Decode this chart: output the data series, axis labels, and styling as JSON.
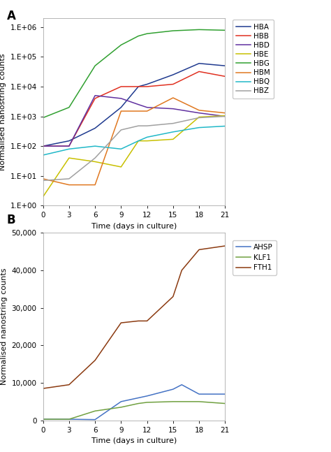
{
  "panel_A": {
    "x": [
      0,
      3,
      6,
      9,
      11,
      12,
      15,
      18,
      21
    ],
    "series": {
      "HBA": {
        "color": "#1f3a8f",
        "values": [
          100,
          150,
          400,
          2000,
          10000,
          12000,
          25000,
          60000,
          50000
        ]
      },
      "HBB": {
        "color": "#e03020",
        "values": [
          100,
          100,
          4000,
          10000,
          10000,
          10000,
          12000,
          32000,
          22000
        ]
      },
      "HBD": {
        "color": "#6030a0",
        "values": [
          100,
          100,
          5000,
          4000,
          2500,
          2000,
          1800,
          1300,
          1000
        ]
      },
      "HBE": {
        "color": "#c8c000",
        "values": [
          2,
          40,
          30,
          20,
          150,
          150,
          170,
          950,
          1050
        ]
      },
      "HBG": {
        "color": "#30a030",
        "values": [
          900,
          2000,
          50000,
          250000,
          500000,
          600000,
          750000,
          820000,
          780000
        ]
      },
      "HBM": {
        "color": "#e07820",
        "values": [
          8,
          5,
          5,
          1500,
          1500,
          1500,
          4200,
          1600,
          1300
        ]
      },
      "HBQ": {
        "color": "#20b8c8",
        "values": [
          50,
          80,
          100,
          80,
          150,
          200,
          300,
          420,
          470
        ]
      },
      "HBZ": {
        "color": "#a0a0a0",
        "values": [
          7,
          8,
          40,
          350,
          480,
          480,
          580,
          900,
          1000
        ]
      }
    },
    "ylabel": "Normalised nanostring counts",
    "xlabel": "Time (days in culture)",
    "ylim": [
      1,
      2000000
    ],
    "xlim": [
      0,
      21
    ],
    "xticks": [
      0,
      3,
      6,
      9,
      12,
      15,
      18,
      21
    ],
    "ytick_vals": [
      1,
      10,
      100,
      1000,
      10000,
      100000,
      1000000
    ],
    "ytick_labels": [
      "1.E+00",
      "1.E+01",
      "1.E+02",
      "1.E+03",
      "1.E+04",
      "1.E+05",
      "1.E+06"
    ]
  },
  "panel_B": {
    "x": [
      0,
      3,
      6,
      9,
      11,
      12,
      15,
      16,
      18,
      21
    ],
    "series": {
      "AHSP": {
        "color": "#4472c4",
        "values": [
          300,
          300,
          200,
          5000,
          6000,
          6500,
          8300,
          9500,
          7000,
          7000
        ]
      },
      "KLF1": {
        "color": "#70a040",
        "values": [
          300,
          300,
          2500,
          3500,
          4500,
          4800,
          5000,
          5000,
          5000,
          4500
        ]
      },
      "FTH1": {
        "color": "#8b3a10",
        "values": [
          8500,
          9500,
          16000,
          26000,
          26500,
          26500,
          33000,
          40000,
          45500,
          46500
        ]
      }
    },
    "ylabel": "Normalised nanostring counts",
    "xlabel": "Time (days in culture)",
    "ylim": [
      0,
      50000
    ],
    "xlim": [
      0,
      21
    ],
    "xticks": [
      0,
      3,
      6,
      9,
      12,
      15,
      18,
      21
    ],
    "yticks": [
      0,
      10000,
      20000,
      30000,
      40000,
      50000
    ],
    "ytick_labels": [
      "0",
      "10,000",
      "20,000",
      "30,000",
      "40,000",
      "50,000"
    ]
  },
  "bg_color": "#ffffff",
  "label_fontsize": 8,
  "tick_fontsize": 7.5,
  "legend_fontsize": 7.5,
  "line_width": 1.1
}
